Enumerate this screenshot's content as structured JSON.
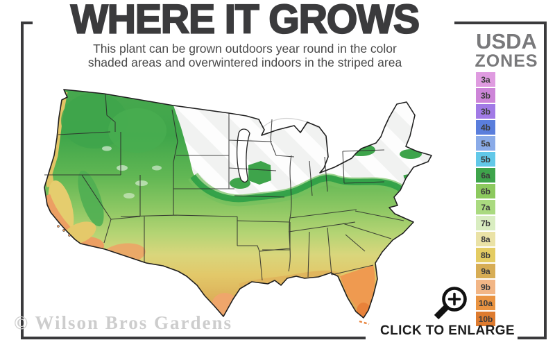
{
  "header": {
    "title": "WHERE IT GROWS",
    "subtitle_line1": "This plant can be grown outdoors year round in the color",
    "subtitle_line2": "shaded areas and overwintered indoors in the striped area"
  },
  "legend": {
    "title_line1": "USDA",
    "title_line2": "ZONES",
    "zones": [
      {
        "label": "3a",
        "color": "#df9be0"
      },
      {
        "label": "3b",
        "color": "#cd85d8"
      },
      {
        "label": "3b",
        "color": "#a17ae6"
      },
      {
        "label": "4b",
        "color": "#5a7edc"
      },
      {
        "label": "5a",
        "color": "#8aabe8"
      },
      {
        "label": "5b",
        "color": "#62c8e8"
      },
      {
        "label": "6a",
        "color": "#3ea44b"
      },
      {
        "label": "6b",
        "color": "#8cc95e"
      },
      {
        "label": "7a",
        "color": "#aada80"
      },
      {
        "label": "7b",
        "color": "#d9edc1"
      },
      {
        "label": "8a",
        "color": "#eae2a6"
      },
      {
        "label": "8b",
        "color": "#e4cc63"
      },
      {
        "label": "9a",
        "color": "#d7ad55"
      },
      {
        "label": "9b",
        "color": "#f2b686"
      },
      {
        "label": "10a",
        "color": "#ea9442"
      },
      {
        "label": "10b",
        "color": "#de7b2f"
      }
    ]
  },
  "map": {
    "palette": {
      "hardy_green": "#3ea44b",
      "mid_yellow_green": "#b5d474",
      "warm_gold": "#dcae58",
      "hot_orange": "#e88b45",
      "striped_not_hardy": "#f3f4f3",
      "state_line": "#2b2b2b"
    }
  },
  "footer": {
    "watermark": "© Wilson Bros Gardens",
    "enlarge_label": "CLICK TO ENLARGE"
  },
  "icons": {
    "enlarge": "magnifying-glass-plus"
  },
  "frame": {
    "color": "#3a3a3c"
  }
}
